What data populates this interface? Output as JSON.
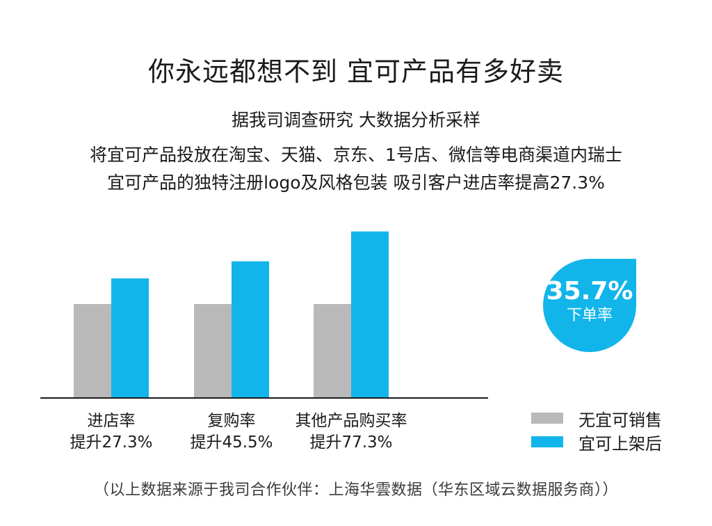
{
  "header": {
    "title": "你永远都想不到 宜可产品有多好卖",
    "subtitle_line1": "据我司调查研究 大数据分析采样",
    "subtitle_line2": "将宜可产品投放在淘宝、天猫、京东、1号店、微信等电商渠道内瑞士",
    "subtitle_line3": "宜可产品的独特注册logo及风格包装 吸引客户进店率提高27.3%"
  },
  "badge": {
    "value": "35.7%",
    "label": "下单率",
    "color": "#12b5ea"
  },
  "colors": {
    "before": "#b9b9b9",
    "after": "#12b5ea",
    "axis": "#1a1a1a"
  },
  "chart_data": {
    "type": "bar",
    "categories": [
      "进店率",
      "复购率",
      "其他产品购买率"
    ],
    "category_sublabels": [
      "提升27.3%",
      "提升45.5%",
      "提升77.3%"
    ],
    "series": [
      {
        "name": "无宜可销售",
        "values": [
          100,
          100,
          100
        ]
      },
      {
        "name": "宜可上架后",
        "values": [
          127.3,
          145.5,
          177.3
        ]
      }
    ],
    "ylim": [
      0,
      180
    ],
    "grid": false,
    "legend": "right"
  },
  "source_note": "（以上数据来源于我司合作伙伴：上海华雲数据（华东区域云数据服务商））"
}
